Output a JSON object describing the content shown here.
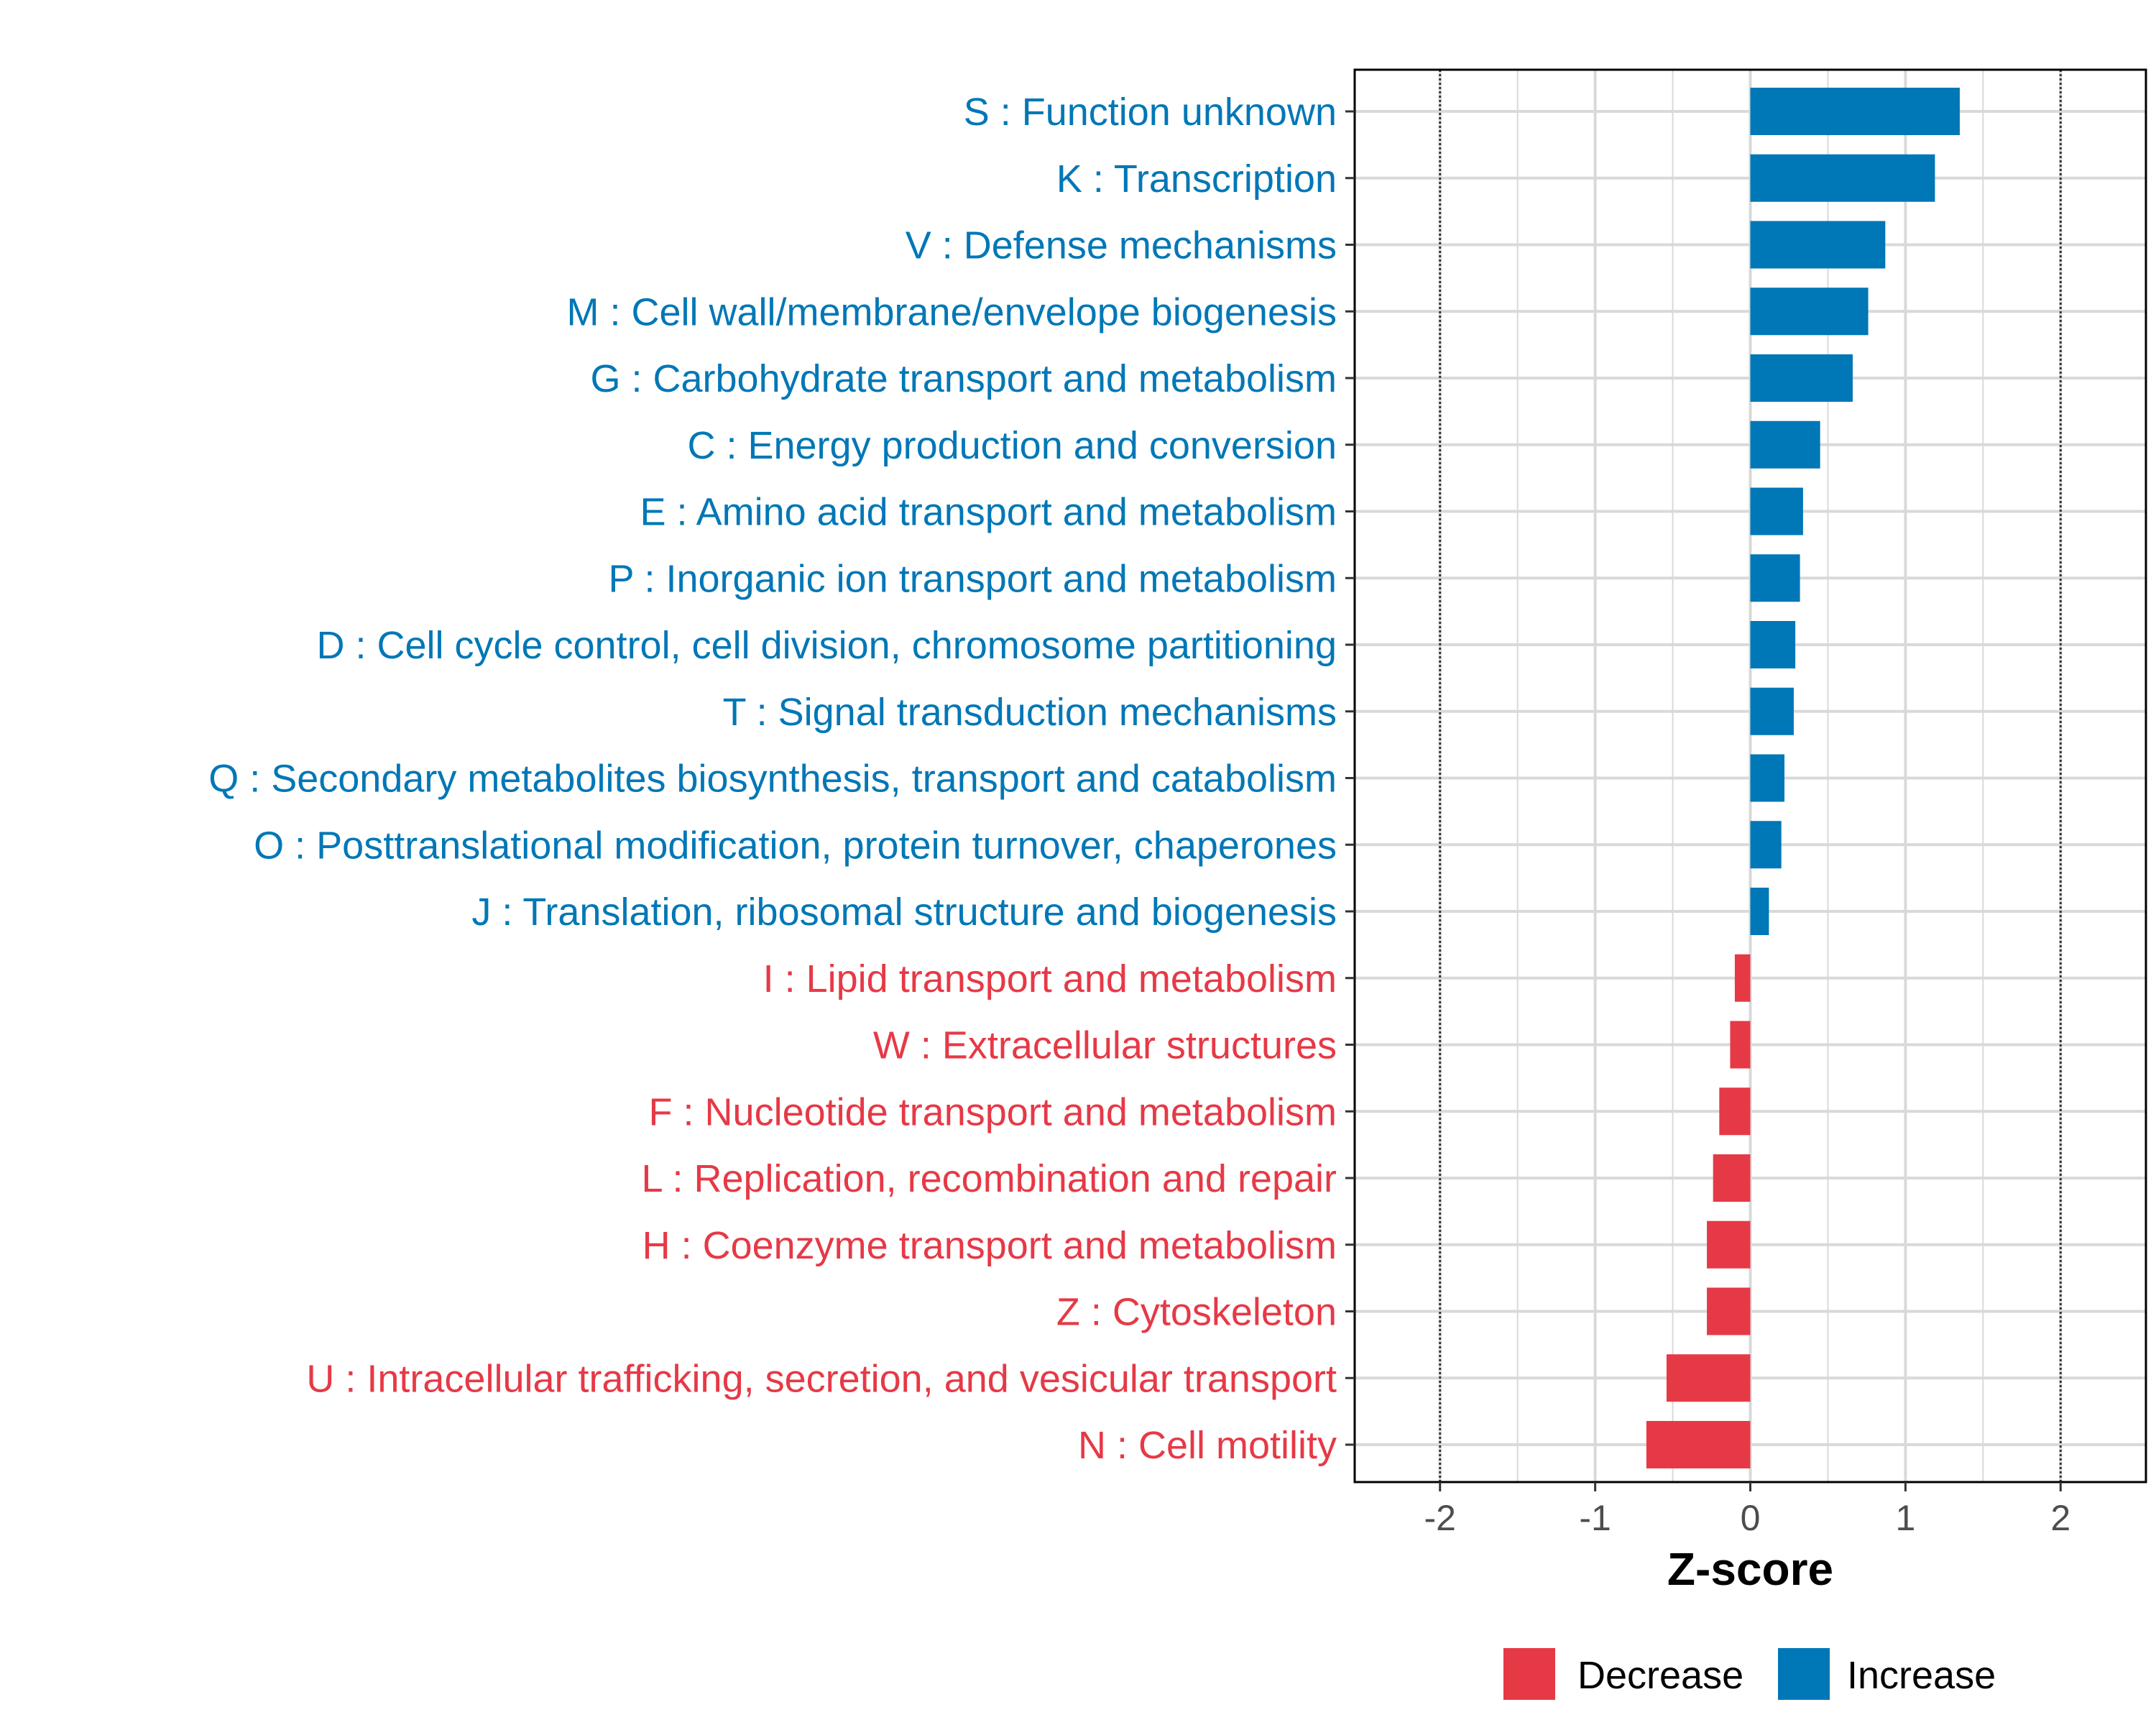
{
  "chart_data": {
    "type": "bar",
    "orientation": "horizontal",
    "title": "",
    "xlabel": "Z-score",
    "ylabel": "",
    "xlim": [
      -2.55,
      2.55
    ],
    "xticks": [
      -2,
      -1,
      0,
      1,
      2
    ],
    "xtick_labels": [
      "-2",
      "-1",
      "0",
      "1",
      "2"
    ],
    "reference_lines": [
      -2,
      2
    ],
    "grid": true,
    "legend_position": "bottom-right",
    "categories": [
      "S : Function unknown",
      "K : Transcription",
      "V : Defense mechanisms",
      "M : Cell wall/membrane/envelope biogenesis",
      "G : Carbohydrate transport and metabolism",
      "C : Energy production and conversion",
      "E : Amino acid transport and metabolism",
      "P : Inorganic ion transport and metabolism",
      "D : Cell cycle control, cell division, chromosome partitioning",
      "T : Signal transduction mechanisms",
      "Q : Secondary metabolites biosynthesis, transport and catabolism",
      "O : Posttranslational modification, protein turnover, chaperones",
      "J : Translation, ribosomal structure and biogenesis",
      "I : Lipid transport and metabolism",
      "W : Extracellular structures",
      "F : Nucleotide transport and metabolism",
      "L : Replication, recombination and repair",
      "H : Coenzyme transport and metabolism",
      "Z : Cytoskeleton",
      "U : Intracellular trafficking, secretion, and vesicular transport",
      "N : Cell motility"
    ],
    "values": [
      1.35,
      1.19,
      0.87,
      0.76,
      0.66,
      0.45,
      0.34,
      0.32,
      0.29,
      0.28,
      0.22,
      0.2,
      0.12,
      -0.1,
      -0.13,
      -0.2,
      -0.24,
      -0.28,
      -0.28,
      -0.54,
      -0.67
    ],
    "series_names": [
      "Increase",
      "Increase",
      "Increase",
      "Increase",
      "Increase",
      "Increase",
      "Increase",
      "Increase",
      "Increase",
      "Increase",
      "Increase",
      "Increase",
      "Increase",
      "Decrease",
      "Decrease",
      "Decrease",
      "Decrease",
      "Decrease",
      "Decrease",
      "Decrease",
      "Decrease"
    ],
    "legend": [
      {
        "name": "Decrease",
        "color": "#e63946"
      },
      {
        "name": "Increase",
        "color": "#0077b6"
      }
    ]
  },
  "colors": {
    "increase": "#0077b6",
    "decrease": "#e63946",
    "grid": "#d9d9d9"
  }
}
